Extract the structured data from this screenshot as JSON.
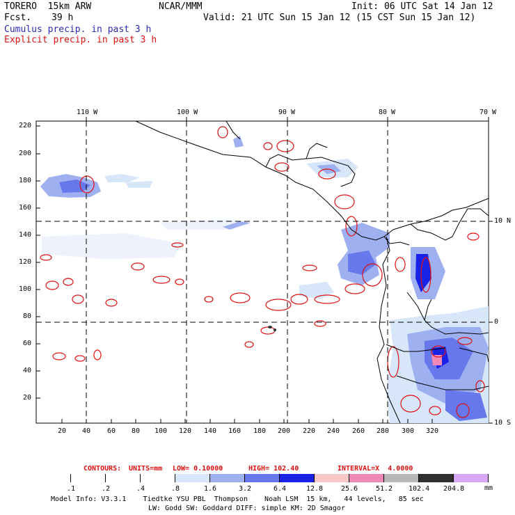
{
  "header": {
    "model": "TORERO  15km ARW",
    "org": "NCAR/MMM",
    "init": "Init: 06 UTC Sat 14 Jan 12",
    "fcst_label": "Fcst.",
    "fcst_value": "39 h",
    "valid": "Valid: 21 UTC Sun 15 Jan 12 (15 CST Sun 15 Jan 12)",
    "cumulus": "Cumulus precip. in past 3 h",
    "explicit": "Explicit precip. in past 3 h"
  },
  "map": {
    "top_lon_labels": [
      "110 W",
      "100 W",
      "90 W",
      "80 W",
      "70 W"
    ],
    "right_lat_labels": [
      "10 N",
      "0",
      "10 S"
    ],
    "y_ticks": [
      "220",
      "200",
      "180",
      "160",
      "140",
      "120",
      "100",
      "80",
      "60",
      "40",
      "20"
    ],
    "x_ticks": [
      "20",
      "40",
      "60",
      "80",
      "100",
      "120",
      "140",
      "160",
      "180",
      "200",
      "220",
      "240",
      "260",
      "280",
      "300",
      "320"
    ]
  },
  "contours": {
    "label": "CONTOURS:",
    "units": "UNITS=mm",
    "low": "LOW= 0.10000",
    "high": "HIGH= 102.40",
    "interval": "INTERVAL=X  4.0000"
  },
  "legend": {
    "unit": "mm",
    "values": [
      ".1",
      ".2",
      ".4",
      ".8",
      "1.6",
      "3.2",
      "6.4",
      "12.8",
      "25.6",
      "51.2",
      "102.4",
      "204.8"
    ],
    "colors": [
      "#ffffff",
      "#ffffff",
      "#ffffff",
      "#ffffff",
      "#d8e6fa",
      "#9fb0f0",
      "#6678ec",
      "#1a22e8",
      "#f8c8c8",
      "#f088b8",
      "#b8b8b8",
      "#303030",
      "#d8a8f8"
    ]
  },
  "footer": {
    "line1": "Model Info: V3.3.1    Tiedtke YSU PBL  Thompson    Noah LSM  15 km,   44 levels,   85 sec",
    "line2": "LW: Godd SW: Goddard DIFF: simple KM: 2D Smagor"
  }
}
